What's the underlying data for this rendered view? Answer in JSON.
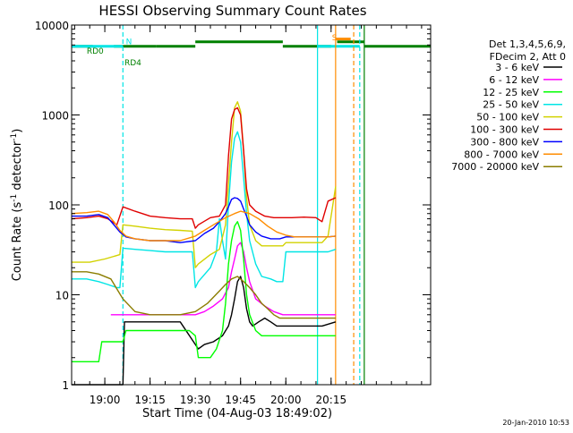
{
  "chart_data": {
    "type": "line",
    "title": "HESSI Observing Summary Count Rates",
    "xlabel": "Start Time (04-Aug-03 18:49:02)",
    "ylabel_main": "Count Rate (s",
    "ylabel_sup1": "-1",
    "ylabel_mid": " detector",
    "ylabel_sup2": "-1",
    "ylabel_end": ")",
    "yscale": "log",
    "ylim": [
      1,
      10000
    ],
    "xlim_min": [
      -11,
      108
    ],
    "x_ticks": [
      {
        "min": 0,
        "label": "19:00"
      },
      {
        "min": 15,
        "label": "19:15"
      },
      {
        "min": 30,
        "label": "19:30"
      },
      {
        "min": 45,
        "label": "19:45"
      },
      {
        "min": 60,
        "label": "20:00"
      },
      {
        "min": 75,
        "label": "20:15"
      }
    ],
    "y_ticks": [
      {
        "value": 1,
        "label": "1"
      },
      {
        "value": 10,
        "label": "10"
      },
      {
        "value": 100,
        "label": "100"
      },
      {
        "value": 1000,
        "label": "1000"
      },
      {
        "value": 10000,
        "label": "10000"
      }
    ],
    "legend": {
      "position": "right",
      "header": [
        "Det 1,3,4,5,6,9,",
        "FDecim 2, Att 0"
      ],
      "entries": [
        {
          "label": "3 - 6 keV",
          "color": "#000000"
        },
        {
          "label": "6 - 12 keV",
          "color": "#ff00ff"
        },
        {
          "label": "12 - 25 keV",
          "color": "#00ff00"
        },
        {
          "label": "25 - 50 keV",
          "color": "#00e5e5"
        },
        {
          "label": "50 - 100 keV",
          "color": "#d2d200"
        },
        {
          "label": "100 - 300 keV",
          "color": "#e00000"
        },
        {
          "label": "300 - 800 keV",
          "color": "#0000ff"
        },
        {
          "label": "800 - 7000 keV",
          "color": "#ff8c00"
        },
        {
          "label": "7000 - 20000 keV",
          "color": "#8b7d00"
        }
      ]
    },
    "series": [
      {
        "name": "3 - 6 keV",
        "color": "#000000",
        "x": [
          -11,
          -3,
          6,
          6.5,
          17,
          25,
          31,
          33,
          36,
          39,
          41,
          42,
          43,
          44,
          45,
          46,
          47,
          48,
          49,
          51,
          53,
          55,
          57,
          59,
          61,
          64,
          68,
          72,
          76.5
        ],
        "y": [
          1,
          1,
          1,
          5,
          5,
          5,
          2.5,
          2.8,
          3,
          3.5,
          4.5,
          6,
          9,
          14,
          16,
          12,
          7,
          5,
          4.5,
          5,
          5.5,
          5,
          4.5,
          4.5,
          4.5,
          4.5,
          4.5,
          4.5,
          5
        ]
      },
      {
        "name": "6 - 12 keV",
        "color": "#ff00ff",
        "x": [
          2,
          6,
          10,
          15,
          20,
          25,
          30,
          33,
          36,
          39,
          41,
          42,
          43,
          44,
          45,
          46,
          47,
          48,
          50,
          53,
          56,
          59,
          62,
          65,
          68,
          72,
          76.5
        ],
        "y": [
          6,
          6,
          6,
          6,
          6,
          6,
          6,
          6.5,
          7.5,
          9,
          12,
          18,
          25,
          35,
          38,
          30,
          20,
          14,
          9,
          7.5,
          6.5,
          6,
          6,
          6,
          6,
          6,
          6
        ]
      },
      {
        "name": "12 - 25 keV",
        "color": "#00ff00",
        "x": [
          -11,
          -2,
          -1,
          6,
          7,
          12,
          18,
          24,
          28,
          30,
          31,
          35,
          37,
          39,
          40,
          41,
          42,
          43,
          44,
          45,
          46,
          47,
          48,
          50,
          52,
          55,
          57,
          59,
          60,
          64,
          68,
          72,
          76.5
        ],
        "y": [
          1.8,
          1.8,
          3,
          3,
          4,
          4,
          4,
          4,
          4,
          3.5,
          2,
          2,
          2.5,
          4,
          8,
          22,
          40,
          58,
          65,
          52,
          25,
          10,
          6,
          4,
          3.5,
          3.5,
          3.5,
          3.5,
          3.5,
          3.5,
          3.5,
          3.5,
          3.5
        ]
      },
      {
        "name": "25 - 50 keV",
        "color": "#00e5e5",
        "x": [
          -11,
          -6,
          -2,
          1,
          4,
          5,
          6,
          10,
          15,
          20,
          25,
          29,
          30,
          31,
          35,
          37,
          38,
          39,
          40,
          41,
          42,
          43,
          44,
          45,
          46,
          47,
          48,
          50,
          52,
          55,
          57,
          59,
          60,
          63,
          66,
          70,
          74,
          76.5
        ],
        "y": [
          15,
          15,
          14,
          13,
          12,
          12,
          33,
          32,
          31,
          30,
          30,
          30,
          12,
          14,
          20,
          30,
          70,
          40,
          25,
          100,
          300,
          550,
          650,
          500,
          200,
          80,
          40,
          22,
          16,
          15,
          14,
          14,
          30,
          30,
          30,
          30,
          30,
          32
        ]
      },
      {
        "name": "50 - 100 keV",
        "color": "#d2d200",
        "x": [
          -11,
          -5,
          0,
          5,
          6,
          10,
          15,
          20,
          25,
          29,
          30,
          31,
          35,
          38,
          40,
          42,
          43,
          44,
          45,
          46,
          47,
          48,
          50,
          52,
          55,
          58,
          59,
          60,
          64,
          68,
          72,
          74,
          76.5
        ],
        "y": [
          23,
          23,
          25,
          28,
          60,
          58,
          55,
          53,
          52,
          51,
          20,
          22,
          28,
          32,
          60,
          500,
          1200,
          1400,
          1100,
          400,
          120,
          60,
          40,
          35,
          35,
          35,
          35,
          38,
          38,
          38,
          38,
          45,
          160
        ]
      },
      {
        "name": "100 - 300 keV",
        "color": "#e00000",
        "x": [
          -11,
          -6,
          -2,
          1,
          4,
          6,
          10,
          15,
          20,
          25,
          29,
          30,
          31,
          35,
          38,
          40,
          41,
          42,
          43,
          44,
          45,
          46,
          47,
          48,
          50,
          53,
          56,
          59,
          62,
          66,
          70,
          72,
          74,
          76.5
        ],
        "y": [
          70,
          72,
          75,
          70,
          60,
          95,
          85,
          75,
          72,
          70,
          70,
          55,
          60,
          72,
          75,
          100,
          350,
          900,
          1150,
          1200,
          1000,
          400,
          150,
          100,
          85,
          75,
          72,
          72,
          72,
          73,
          72,
          65,
          110,
          120
        ]
      },
      {
        "name": "300 - 800 keV",
        "color": "#0000ff",
        "x": [
          -11,
          -6,
          -2,
          1,
          3,
          5,
          7,
          10,
          15,
          20,
          25,
          30,
          33,
          36,
          38,
          40,
          41,
          42,
          43,
          44,
          45,
          46,
          47,
          48,
          50,
          52,
          55,
          58,
          60,
          63,
          66,
          70,
          74,
          76.5
        ],
        "y": [
          75,
          75,
          78,
          72,
          60,
          50,
          44,
          42,
          40,
          40,
          38,
          40,
          48,
          55,
          65,
          80,
          95,
          115,
          120,
          118,
          110,
          90,
          75,
          60,
          50,
          45,
          42,
          42,
          44,
          44,
          44,
          44,
          44,
          45
        ]
      },
      {
        "name": "800 - 7000 keV",
        "color": "#ff8c00",
        "x": [
          -11,
          -6,
          -2,
          1,
          3,
          5,
          7,
          10,
          15,
          20,
          25,
          30,
          33,
          36,
          40,
          43,
          45,
          48,
          51,
          54,
          57,
          60,
          63,
          66,
          70,
          74,
          76.5
        ],
        "y": [
          80,
          82,
          85,
          78,
          65,
          52,
          45,
          42,
          40,
          40,
          40,
          45,
          52,
          60,
          72,
          80,
          85,
          80,
          70,
          58,
          50,
          46,
          44,
          44,
          44,
          44,
          45
        ]
      },
      {
        "name": "7000 - 20000 keV",
        "color": "#8b7d00",
        "x": [
          -11,
          -6,
          -2,
          2,
          6,
          10,
          15,
          20,
          25,
          30,
          34,
          38,
          40,
          42,
          44,
          46,
          48,
          50,
          52,
          54,
          56,
          58,
          61,
          64,
          68,
          72,
          76.5
        ],
        "y": [
          18,
          18,
          17,
          15,
          9,
          6.5,
          6,
          6,
          6,
          6.5,
          8,
          11,
          13,
          15,
          16,
          14,
          12,
          10,
          8,
          7,
          6,
          5.5,
          5.5,
          5.5,
          5.5,
          5.5,
          5.5
        ]
      }
    ],
    "annotations": [
      {
        "label": "RD0",
        "color": "#008000"
      },
      {
        "label": "RD4",
        "color": "#008000"
      },
      {
        "label": "N",
        "color": "#00e5e5"
      },
      {
        "label": "S",
        "color": "#ff8c00"
      }
    ],
    "timestamp": "20-Jan-2010 10:53"
  }
}
